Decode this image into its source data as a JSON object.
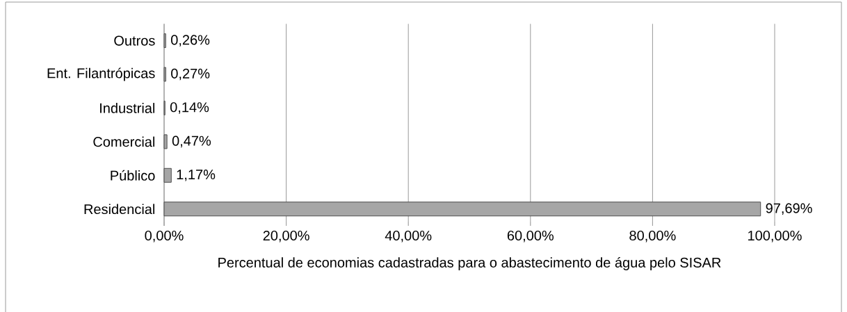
{
  "chart_data": {
    "type": "bar",
    "orientation": "horizontal",
    "xlabel": "Percentual de economias cadastradas para o abastecimento de água pelo SISAR",
    "categories": [
      "Outros",
      "Ent. Filantrópicas",
      "Industrial",
      "Comercial",
      "Público",
      "Residencial"
    ],
    "values": [
      0.26,
      0.27,
      0.14,
      0.47,
      1.17,
      97.69
    ],
    "value_labels": [
      "0,26%",
      "0,27%",
      "0,14%",
      "0,47%",
      "1,17%",
      "97,69%"
    ],
    "color": "#a6a6a6",
    "xlim": [
      0,
      100
    ],
    "xticks": [
      {
        "value": 0,
        "label": "0,00%"
      },
      {
        "value": 20,
        "label": "20,00%"
      },
      {
        "value": 40,
        "label": "40,00%"
      },
      {
        "value": 60,
        "label": "60,00%"
      },
      {
        "value": 80,
        "label": "80,00%"
      },
      {
        "value": 100,
        "label": "100,00%"
      }
    ],
    "grid": "x"
  }
}
